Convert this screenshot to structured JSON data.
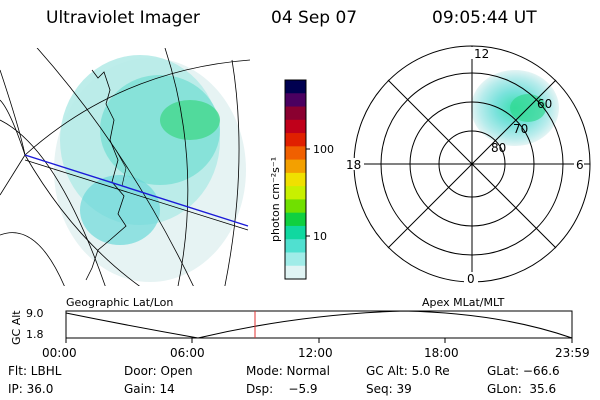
{
  "header": {
    "instrument": "Ultraviolet Imager",
    "date": "04 Sep 07",
    "time": "09:05:44 UT"
  },
  "colorbar": {
    "label": "photon cm⁻²s⁻¹",
    "ticks": [
      "100",
      "10"
    ],
    "colors": [
      "#000050",
      "#4a0060",
      "#8a0030",
      "#c0001a",
      "#e02000",
      "#f06000",
      "#f3a000",
      "#f0e000",
      "#c8f000",
      "#70e000",
      "#10d040",
      "#10d8a0",
      "#50e0d0",
      "#a0ece8",
      "#e0f4f4"
    ]
  },
  "polar_plot": {
    "mlt_labels": [
      "12",
      "18",
      "6",
      "0"
    ],
    "lat_labels": [
      "60",
      "70",
      "80"
    ]
  },
  "timeline": {
    "left_label": "Geographic Lat/Lon",
    "right_label": "Apex MLat/MLT",
    "yaxis_label": "GC Alt",
    "y_ticks": [
      "9.0",
      "1.8"
    ],
    "x_ticks": [
      "00:00",
      "06:00",
      "12:00",
      "18:00",
      "23:59"
    ],
    "current_marker_time": "09:05:44"
  },
  "status": {
    "flt": "Flt: LBHL",
    "door": "Door: Open",
    "mode": "Mode: Normal",
    "gc_alt": "GC Alt: 5.0 Re",
    "glat": "GLat: −66.6",
    "ip": "IP: 36.0",
    "gain": "Gain: 14",
    "dsp": "Dsp:    −5.9",
    "seq": "Seq: 39",
    "glon": "GLon:  35.6"
  }
}
